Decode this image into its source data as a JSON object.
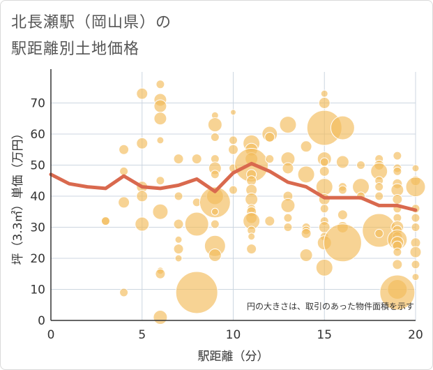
{
  "title_line1": "北長瀬駅（岡山県）の",
  "title_line2": "駅距離別土地価格",
  "chart_data": {
    "type": "scatter",
    "xlabel": "駅距離（分）",
    "ylabel": "坪（3.3㎡）単価（万円）",
    "xlim": [
      0,
      20
    ],
    "ylim": [
      0,
      80
    ],
    "xticks": [
      0,
      5,
      10,
      15,
      20
    ],
    "yticks": [
      0,
      10,
      20,
      30,
      40,
      50,
      60,
      70
    ],
    "grid": true,
    "note": "円の大きさは、取引のあった物件面積を示す",
    "bubble_color": "#f3bb5a",
    "line_color": "#d9694e",
    "avg_line": {
      "x": [
        0,
        1,
        2,
        3,
        4,
        5,
        6,
        7,
        8,
        9,
        10,
        11,
        12,
        13,
        14,
        15,
        16,
        17,
        18,
        19,
        20
      ],
      "y": [
        47,
        44,
        43,
        42.5,
        46.5,
        43,
        42.5,
        43.5,
        45.5,
        41.5,
        47.5,
        50.5,
        48,
        44.5,
        43,
        39.5,
        39.5,
        39.5,
        37,
        37,
        35.5
      ]
    },
    "bubbles": [
      {
        "x": 3,
        "y": 32,
        "r": 6
      },
      {
        "x": 3,
        "y": 32,
        "r": 6
      },
      {
        "x": 4,
        "y": 9,
        "r": 6
      },
      {
        "x": 4,
        "y": 38,
        "r": 8
      },
      {
        "x": 4,
        "y": 48,
        "r": 6
      },
      {
        "x": 4,
        "y": 55,
        "r": 7
      },
      {
        "x": 5,
        "y": 73,
        "r": 8
      },
      {
        "x": 5,
        "y": 57,
        "r": 8
      },
      {
        "x": 5,
        "y": 43,
        "r": 8
      },
      {
        "x": 5,
        "y": 40,
        "r": 8
      },
      {
        "x": 5,
        "y": 31,
        "r": 10
      },
      {
        "x": 6,
        "y": 76,
        "r": 6
      },
      {
        "x": 6,
        "y": 71,
        "r": 9
      },
      {
        "x": 6,
        "y": 69,
        "r": 9
      },
      {
        "x": 6,
        "y": 65,
        "r": 9
      },
      {
        "x": 6,
        "y": 58,
        "r": 5
      },
      {
        "x": 6,
        "y": 45,
        "r": 6
      },
      {
        "x": 6,
        "y": 35,
        "r": 11
      },
      {
        "x": 6,
        "y": 16,
        "r": 5
      },
      {
        "x": 6,
        "y": 15,
        "r": 7
      },
      {
        "x": 6,
        "y": 1,
        "r": 10
      },
      {
        "x": 7,
        "y": 52,
        "r": 7
      },
      {
        "x": 7,
        "y": 40,
        "r": 6
      },
      {
        "x": 7,
        "y": 31,
        "r": 7
      },
      {
        "x": 7,
        "y": 26,
        "r": 5
      },
      {
        "x": 7,
        "y": 23,
        "r": 7
      },
      {
        "x": 7,
        "y": 20,
        "r": 5
      },
      {
        "x": 8,
        "y": 9,
        "r": 30
      },
      {
        "x": 8,
        "y": 31,
        "r": 17
      },
      {
        "x": 8,
        "y": 52,
        "r": 7
      },
      {
        "x": 8,
        "y": 38,
        "r": 6
      },
      {
        "x": 9,
        "y": 66,
        "r": 5
      },
      {
        "x": 9,
        "y": 63,
        "r": 10
      },
      {
        "x": 9,
        "y": 59,
        "r": 6
      },
      {
        "x": 9,
        "y": 52,
        "r": 6
      },
      {
        "x": 9,
        "y": 49,
        "r": 9
      },
      {
        "x": 9,
        "y": 47,
        "r": 6
      },
      {
        "x": 9,
        "y": 40,
        "r": 12
      },
      {
        "x": 9,
        "y": 38,
        "r": 22
      },
      {
        "x": 9,
        "y": 35,
        "r": 5
      },
      {
        "x": 9,
        "y": 31,
        "r": 6
      },
      {
        "x": 9,
        "y": 24,
        "r": 15
      },
      {
        "x": 9,
        "y": 21,
        "r": 9
      },
      {
        "x": 10,
        "y": 67,
        "r": 4
      },
      {
        "x": 10,
        "y": 58,
        "r": 6
      },
      {
        "x": 10,
        "y": 55,
        "r": 7
      },
      {
        "x": 10,
        "y": 49,
        "r": 6
      },
      {
        "x": 10,
        "y": 42,
        "r": 6
      },
      {
        "x": 11,
        "y": 57,
        "r": 12
      },
      {
        "x": 11,
        "y": 55,
        "r": 9
      },
      {
        "x": 11,
        "y": 52,
        "r": 9
      },
      {
        "x": 11,
        "y": 50,
        "r": 24
      },
      {
        "x": 11,
        "y": 47,
        "r": 7
      },
      {
        "x": 11,
        "y": 45,
        "r": 7
      },
      {
        "x": 11,
        "y": 42,
        "r": 8
      },
      {
        "x": 11,
        "y": 39,
        "r": 9
      },
      {
        "x": 11,
        "y": 36,
        "r": 6
      },
      {
        "x": 11,
        "y": 35,
        "r": 7
      },
      {
        "x": 11,
        "y": 33,
        "r": 8
      },
      {
        "x": 11,
        "y": 32,
        "r": 12
      },
      {
        "x": 11,
        "y": 29,
        "r": 6
      },
      {
        "x": 11,
        "y": 27,
        "r": 5
      },
      {
        "x": 11,
        "y": 23,
        "r": 7
      },
      {
        "x": 12,
        "y": 60,
        "r": 11
      },
      {
        "x": 12,
        "y": 59,
        "r": 7
      },
      {
        "x": 12,
        "y": 52,
        "r": 6
      },
      {
        "x": 12,
        "y": 32,
        "r": 7
      },
      {
        "x": 13,
        "y": 63,
        "r": 12
      },
      {
        "x": 13,
        "y": 52,
        "r": 10
      },
      {
        "x": 13,
        "y": 49,
        "r": 8
      },
      {
        "x": 13,
        "y": 40,
        "r": 7
      },
      {
        "x": 13,
        "y": 37,
        "r": 10
      },
      {
        "x": 13,
        "y": 33,
        "r": 6
      },
      {
        "x": 13,
        "y": 30,
        "r": 6
      },
      {
        "x": 14,
        "y": 56,
        "r": 8
      },
      {
        "x": 14,
        "y": 47,
        "r": 12
      },
      {
        "x": 14,
        "y": 30,
        "r": 6
      },
      {
        "x": 14,
        "y": 29,
        "r": 6
      },
      {
        "x": 14,
        "y": 28,
        "r": 7
      },
      {
        "x": 14,
        "y": 21,
        "r": 9
      },
      {
        "x": 15,
        "y": 73,
        "r": 5
      },
      {
        "x": 15,
        "y": 70,
        "r": 8
      },
      {
        "x": 15,
        "y": 62,
        "r": 25
      },
      {
        "x": 15,
        "y": 52,
        "r": 10
      },
      {
        "x": 15,
        "y": 51,
        "r": 6
      },
      {
        "x": 15,
        "y": 48,
        "r": 7
      },
      {
        "x": 15,
        "y": 43,
        "r": 12
      },
      {
        "x": 15,
        "y": 39,
        "r": 8
      },
      {
        "x": 15,
        "y": 36,
        "r": 6
      },
      {
        "x": 15,
        "y": 32,
        "r": 6
      },
      {
        "x": 15,
        "y": 30,
        "r": 8
      },
      {
        "x": 15,
        "y": 27,
        "r": 6
      },
      {
        "x": 15,
        "y": 25,
        "r": 10
      },
      {
        "x": 15,
        "y": 17,
        "r": 12
      },
      {
        "x": 16,
        "y": 62,
        "r": 17
      },
      {
        "x": 16,
        "y": 51,
        "r": 9
      },
      {
        "x": 16,
        "y": 43,
        "r": 6
      },
      {
        "x": 16,
        "y": 42,
        "r": 6
      },
      {
        "x": 16,
        "y": 34,
        "r": 7
      },
      {
        "x": 16,
        "y": 30,
        "r": 8
      },
      {
        "x": 16,
        "y": 25,
        "r": 27
      },
      {
        "x": 17,
        "y": 50,
        "r": 6
      },
      {
        "x": 17,
        "y": 43,
        "r": 12
      },
      {
        "x": 17,
        "y": 40,
        "r": 6
      },
      {
        "x": 18,
        "y": 52,
        "r": 6
      },
      {
        "x": 18,
        "y": 50,
        "r": 7
      },
      {
        "x": 18,
        "y": 48,
        "r": 12
      },
      {
        "x": 18,
        "y": 45,
        "r": 6
      },
      {
        "x": 18,
        "y": 43,
        "r": 6
      },
      {
        "x": 18,
        "y": 40,
        "r": 6
      },
      {
        "x": 18,
        "y": 29,
        "r": 24
      },
      {
        "x": 18,
        "y": 28,
        "r": 6
      },
      {
        "x": 19,
        "y": 53,
        "r": 6
      },
      {
        "x": 19,
        "y": 49,
        "r": 6
      },
      {
        "x": 19,
        "y": 48,
        "r": 6
      },
      {
        "x": 19,
        "y": 44,
        "r": 7
      },
      {
        "x": 19,
        "y": 42,
        "r": 9
      },
      {
        "x": 19,
        "y": 39,
        "r": 7
      },
      {
        "x": 19,
        "y": 36,
        "r": 6
      },
      {
        "x": 19,
        "y": 33,
        "r": 6
      },
      {
        "x": 19,
        "y": 30,
        "r": 9
      },
      {
        "x": 19,
        "y": 29,
        "r": 7
      },
      {
        "x": 19,
        "y": 27,
        "r": 7
      },
      {
        "x": 19,
        "y": 26,
        "r": 14
      },
      {
        "x": 19,
        "y": 25,
        "r": 9
      },
      {
        "x": 19,
        "y": 24,
        "r": 7
      },
      {
        "x": 19,
        "y": 22,
        "r": 6
      },
      {
        "x": 19,
        "y": 18,
        "r": 7
      },
      {
        "x": 19,
        "y": 10,
        "r": 14
      },
      {
        "x": 19,
        "y": 9,
        "r": 25
      },
      {
        "x": 20,
        "y": 49,
        "r": 5
      },
      {
        "x": 20,
        "y": 45,
        "r": 7
      },
      {
        "x": 20,
        "y": 43,
        "r": 14
      },
      {
        "x": 20,
        "y": 36,
        "r": 6
      },
      {
        "x": 20,
        "y": 33,
        "r": 6
      },
      {
        "x": 20,
        "y": 30,
        "r": 6
      },
      {
        "x": 20,
        "y": 25,
        "r": 7
      },
      {
        "x": 20,
        "y": 22,
        "r": 8
      },
      {
        "x": 20,
        "y": 18,
        "r": 6
      },
      {
        "x": 20,
        "y": 14,
        "r": 5
      }
    ]
  }
}
